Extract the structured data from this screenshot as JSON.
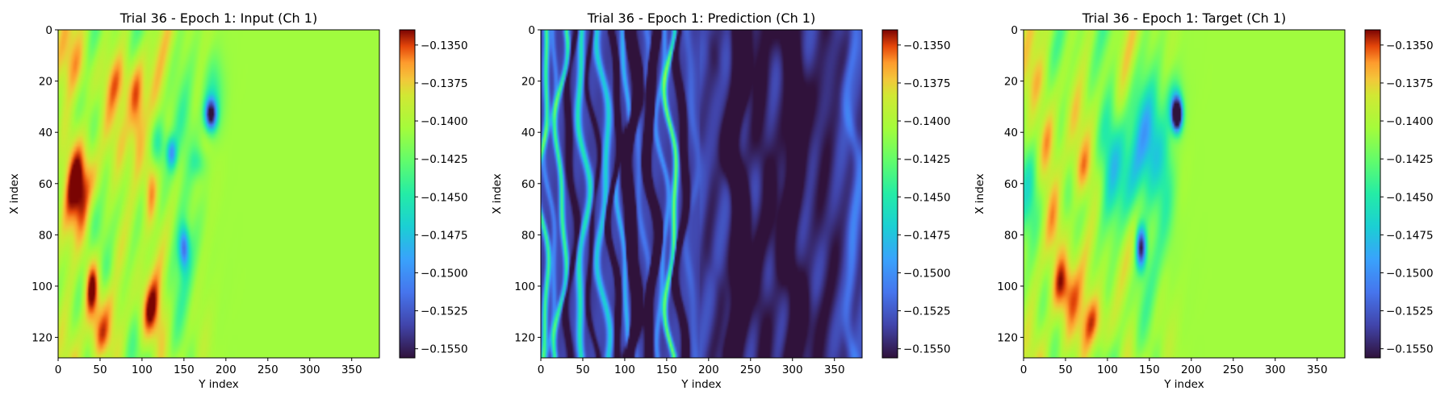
{
  "chart_data": [
    {
      "type": "heatmap",
      "title": "Trial 36 - Epoch 1: Input (Ch 1)",
      "xlabel": "Y index",
      "ylabel": "X index",
      "xlim": [
        0,
        383
      ],
      "ylim": [
        128,
        0
      ],
      "x_ticks": [
        "0",
        "50",
        "100",
        "150",
        "200",
        "250",
        "300",
        "350"
      ],
      "y_ticks": [
        "0",
        "20",
        "40",
        "60",
        "80",
        "100",
        "120"
      ],
      "colormap": "turbo",
      "color_range": [
        -0.1556,
        -0.134
      ],
      "colorbar_ticks": [
        "−0.1350",
        "−0.1375",
        "−0.1400",
        "−0.1425",
        "−0.1450",
        "−0.1475",
        "−0.1500",
        "−0.1525",
        "−0.1550"
      ],
      "fields": {
        "background": -0.1406,
        "blobs": [
          [
            30,
            64,
            24,
            18,
            0.55
          ],
          [
            95,
            38,
            10,
            22,
            0.55
          ],
          [
            110,
            60,
            9,
            16,
            0.6
          ],
          [
            25,
            15,
            18,
            14,
            0.42
          ],
          [
            110,
            110,
            16,
            14,
            0.55
          ],
          [
            75,
            20,
            22,
            12,
            0.3
          ],
          [
            40,
            100,
            10,
            14,
            0.75
          ],
          [
            60,
            95,
            12,
            10,
            -0.25
          ],
          [
            40,
            70,
            10,
            12,
            -0.3
          ],
          [
            140,
            70,
            16,
            26,
            -0.28
          ],
          [
            120,
            45,
            10,
            10,
            -0.4
          ],
          [
            135,
            48,
            6,
            6,
            -0.7
          ],
          [
            150,
            85,
            6,
            8,
            -0.85
          ],
          [
            182,
            33,
            7,
            6,
            -1.4
          ],
          [
            168,
            52,
            10,
            6,
            -0.3
          ],
          [
            185,
            25,
            12,
            14,
            -0.35
          ],
          [
            50,
            120,
            15,
            10,
            0.3
          ]
        ]
      }
    },
    {
      "type": "heatmap",
      "title": "Trial 36 - Epoch 1: Prediction (Ch 1)",
      "xlabel": "Y index",
      "ylabel": "X index",
      "xlim": [
        0,
        383
      ],
      "ylim": [
        128,
        0
      ],
      "x_ticks": [
        "0",
        "50",
        "100",
        "150",
        "200",
        "250",
        "300",
        "350"
      ],
      "y_ticks": [
        "0",
        "20",
        "40",
        "60",
        "80",
        "100",
        "120"
      ],
      "colormap": "turbo",
      "color_range": [
        -0.1556,
        -0.134
      ],
      "colorbar_ticks": [
        "−0.1350",
        "−0.1375",
        "−0.1400",
        "−0.1425",
        "−0.1450",
        "−0.1475",
        "−0.1500",
        "−0.1525",
        "−0.1550"
      ],
      "fields": {
        "background": -0.1535,
        "stripes": [
          [
            3,
            3,
            1.3
          ],
          [
            12,
            3,
            0.4
          ],
          [
            24,
            3,
            1.3
          ],
          [
            36,
            4,
            -0.5
          ],
          [
            50,
            4,
            1.1
          ],
          [
            62,
            3,
            -0.4
          ],
          [
            75,
            4,
            0.9
          ],
          [
            88,
            3,
            -1.0
          ],
          [
            98,
            3,
            0.7
          ],
          [
            108,
            5,
            -2.0
          ],
          [
            120,
            4,
            0.3
          ],
          [
            132,
            4,
            -1.6
          ],
          [
            145,
            3,
            0.5
          ],
          [
            156,
            3,
            1.5
          ],
          [
            168,
            4,
            -0.8
          ],
          [
            180,
            5,
            0.2
          ],
          [
            205,
            8,
            -0.1
          ],
          [
            235,
            10,
            -0.9
          ],
          [
            265,
            12,
            -0.3
          ],
          [
            300,
            15,
            -0.5
          ],
          [
            340,
            15,
            -0.2
          ],
          [
            372,
            6,
            0.3
          ]
        ]
      }
    },
    {
      "type": "heatmap",
      "title": "Trial 36 - Epoch 1: Target (Ch 1)",
      "xlabel": "Y index",
      "ylabel": "X index",
      "xlim": [
        0,
        383
      ],
      "ylim": [
        128,
        0
      ],
      "x_ticks": [
        "0",
        "50",
        "100",
        "150",
        "200",
        "250",
        "300",
        "350"
      ],
      "y_ticks": [
        "0",
        "20",
        "40",
        "60",
        "80",
        "100",
        "120"
      ],
      "colormap": "turbo",
      "color_range": [
        -0.1556,
        -0.134
      ],
      "colorbar_ticks": [
        "−0.1350",
        "−0.1375",
        "−0.1400",
        "−0.1425",
        "−0.1450",
        "−0.1475",
        "−0.1500",
        "−0.1525",
        "−0.1550"
      ],
      "fields": {
        "background": -0.1406,
        "blobs": [
          [
            10,
            65,
            14,
            20,
            -0.55
          ],
          [
            40,
            80,
            14,
            18,
            0.5
          ],
          [
            45,
            100,
            15,
            12,
            0.5
          ],
          [
            30,
            40,
            12,
            14,
            0.35
          ],
          [
            85,
            115,
            16,
            12,
            0.55
          ],
          [
            105,
            45,
            12,
            30,
            -0.3
          ],
          [
            145,
            45,
            22,
            22,
            -0.55
          ],
          [
            130,
            60,
            18,
            20,
            -0.4
          ],
          [
            140,
            85,
            6,
            8,
            -1.3
          ],
          [
            183,
            33,
            6,
            6,
            -2.0
          ],
          [
            180,
            28,
            10,
            10,
            -0.4
          ],
          [
            170,
            60,
            12,
            25,
            -0.3
          ],
          [
            70,
            55,
            15,
            10,
            0.25
          ],
          [
            20,
            20,
            20,
            12,
            0.3
          ]
        ]
      }
    }
  ]
}
